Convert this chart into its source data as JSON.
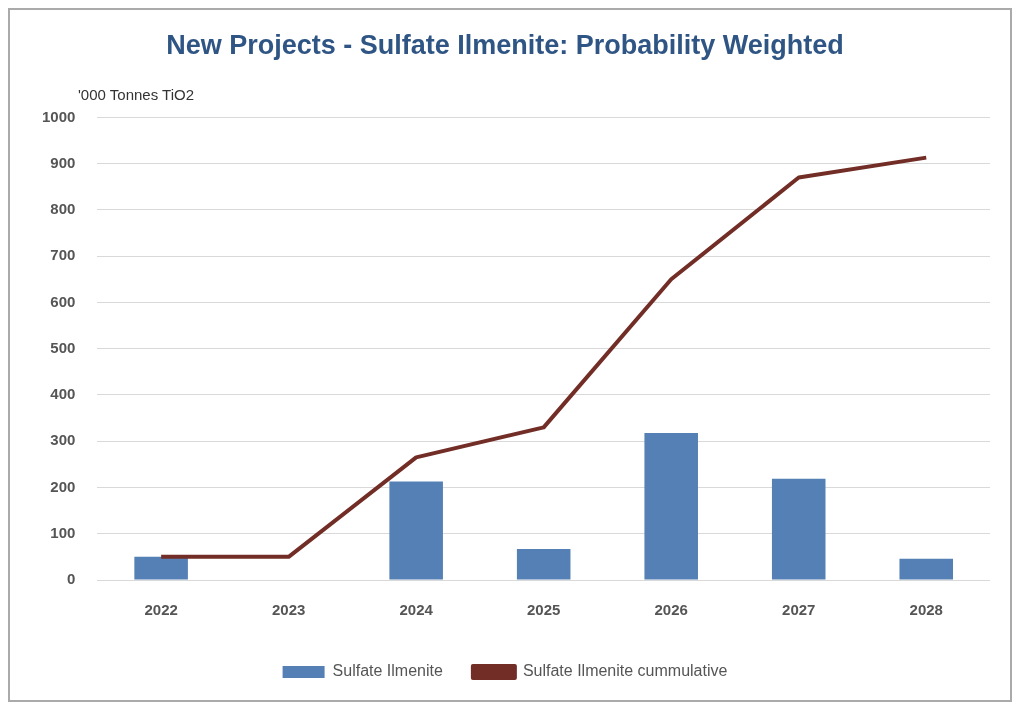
{
  "chart_data": {
    "type": "bar",
    "title": "New Projects - Sulfate Ilmenite: Probability Weighted",
    "ylabel": "'000 Tonnes TiO2",
    "categories": [
      "2022",
      "2023",
      "2024",
      "2025",
      "2026",
      "2027",
      "2028"
    ],
    "series": [
      {
        "name": "Sulfate Ilmenite",
        "color": "#5580b5",
        "values": [
          50,
          0,
          213,
          67,
          318,
          219,
          46
        ]
      },
      {
        "name": "Sulfate Ilmenite cummulative",
        "type": "line",
        "color": "#722e26",
        "values": [
          50,
          50,
          265,
          330,
          650,
          870,
          913
        ]
      }
    ],
    "ylim": [
      0,
      1000
    ],
    "yticks": [
      0,
      100,
      200,
      300,
      400,
      500,
      600,
      700,
      800,
      900,
      1000
    ],
    "grid": "y",
    "legend": "bottom",
    "marker": "none"
  }
}
